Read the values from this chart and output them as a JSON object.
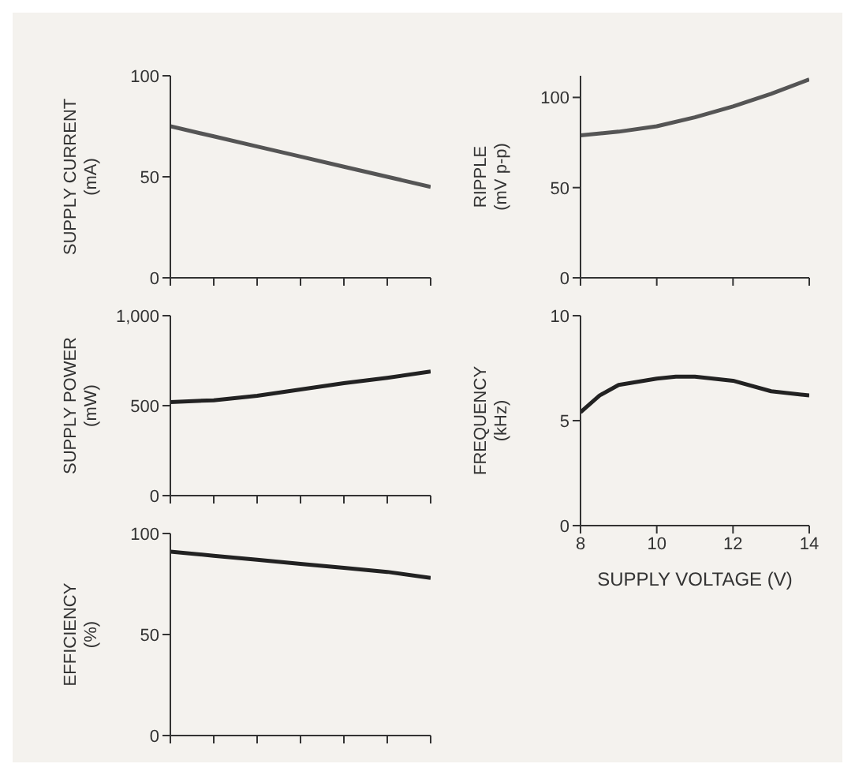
{
  "chart_data": [
    {
      "type": "line",
      "ylabel": "SUPPLY CURRENT (mA)",
      "categories": [
        null,
        null,
        null,
        null,
        null,
        null,
        null
      ],
      "ylim": [
        0,
        100
      ],
      "yticks": [
        0,
        50,
        100
      ],
      "tick_labels": "y",
      "marker": "none",
      "series": [
        {
          "color": "#555555",
          "values": [
            75,
            70,
            65,
            60,
            55,
            50,
            45
          ]
        }
      ]
    },
    {
      "type": "line",
      "ylabel": "SUPPLY POWER (mW)",
      "categories": [
        null,
        null,
        null,
        null,
        null,
        null,
        null
      ],
      "ylim": [
        0,
        1000
      ],
      "yticks": [
        0,
        500,
        {
          "value": 1000,
          "label": "1,000"
        }
      ],
      "tick_labels": "y",
      "marker": "none",
      "series": [
        {
          "color": "#222222",
          "values": [
            520,
            530,
            555,
            590,
            625,
            655,
            690
          ]
        }
      ]
    },
    {
      "type": "line",
      "ylabel": "EFFICIENCY (%)",
      "categories": [
        null,
        null,
        null,
        null,
        null,
        null,
        null
      ],
      "ylim": [
        0,
        100
      ],
      "yticks": [
        0,
        50,
        100
      ],
      "tick_labels": "y",
      "marker": "none",
      "series": [
        {
          "color": "#222222",
          "values": [
            91,
            89,
            87,
            85,
            83,
            81,
            78
          ]
        }
      ]
    },
    {
      "type": "line",
      "ylabel": "RIPPLE (mV p-p)",
      "x": [
        8,
        9,
        10,
        11,
        12,
        13,
        14
      ],
      "xlim": [
        8,
        14
      ],
      "xticks": [
        {
          "value": 8,
          "label": null
        },
        {
          "value": 10,
          "label": null
        },
        {
          "value": 12,
          "label": null
        },
        {
          "value": 14,
          "label": null
        }
      ],
      "ylim": [
        0,
        112
      ],
      "yticks": [
        0,
        50,
        100
      ],
      "tick_labels": "y",
      "marker": "none",
      "series": [
        {
          "color": "#555555",
          "values": [
            79,
            81,
            84,
            89,
            95,
            102,
            110
          ]
        }
      ]
    },
    {
      "type": "line",
      "ylabel": "FREQUENCY (kHz)",
      "xlabel": "SUPPLY VOLTAGE (V)",
      "x": [
        8,
        8.5,
        9,
        10,
        10.5,
        11,
        12,
        13,
        14
      ],
      "xlim": [
        8,
        14
      ],
      "xticks": [
        8,
        10,
        12,
        14
      ],
      "ylim": [
        0,
        10
      ],
      "yticks": [
        0,
        5,
        10
      ],
      "marker": "none",
      "series": [
        {
          "color": "#222222",
          "values": [
            5.4,
            6.2,
            6.7,
            7.0,
            7.1,
            7.1,
            6.9,
            6.4,
            6.2
          ]
        }
      ]
    }
  ]
}
